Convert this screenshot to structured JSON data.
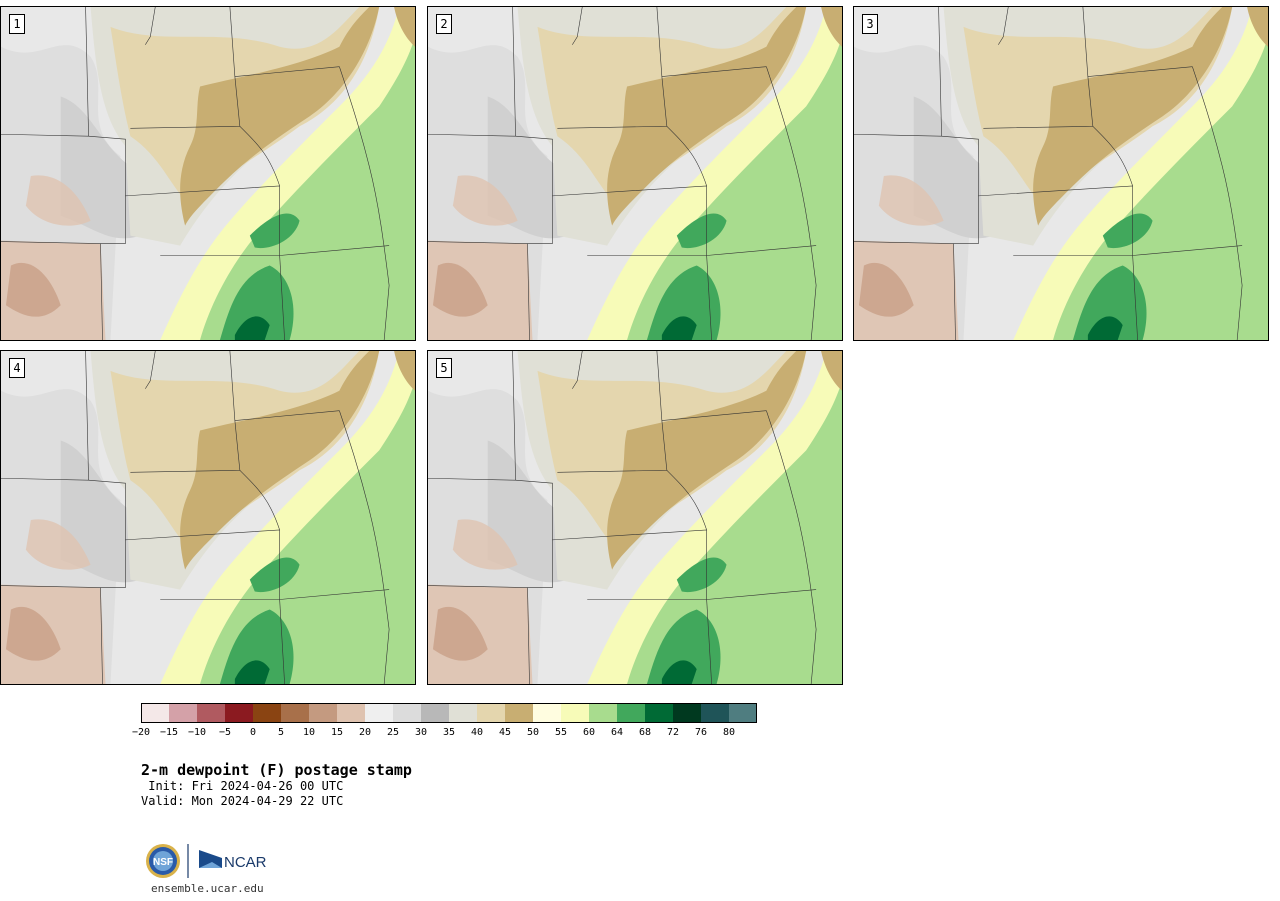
{
  "panels": [
    {
      "label": "1"
    },
    {
      "label": "2"
    },
    {
      "label": "3"
    },
    {
      "label": "4"
    },
    {
      "label": "5"
    }
  ],
  "colorbar": {
    "colors": [
      "#f4e8e8",
      "#d4a1a8",
      "#b05a60",
      "#8b1a20",
      "#8a4412",
      "#a8704a",
      "#c49a80",
      "#dfc3b0",
      "#efefef",
      "#dcdcdc",
      "#b8b8b8",
      "#e0e0d6",
      "#e4d6ae",
      "#c8ae72",
      "#fffde0",
      "#f7fbb8",
      "#a8dc8e",
      "#41a85c",
      "#006a35",
      "#00391f",
      "#1f5458",
      "#4f7d80"
    ],
    "ticks": [
      "−20",
      "−15",
      "−10",
      "−5",
      "0",
      "5",
      "10",
      "15",
      "20",
      "25",
      "30",
      "35",
      "40",
      "45",
      "50",
      "55",
      "60",
      "64",
      "68",
      "72",
      "76",
      "80"
    ]
  },
  "title": "2-m dewpoint (F) postage stamp",
  "init": " Init: Fri 2024-04-26 00 UTC",
  "valid": "Valid: Mon 2024-04-29 22 UTC",
  "logo": {
    "nsf": "NSF",
    "ncar": "NCAR"
  },
  "site": "ensemble.ucar.edu"
}
